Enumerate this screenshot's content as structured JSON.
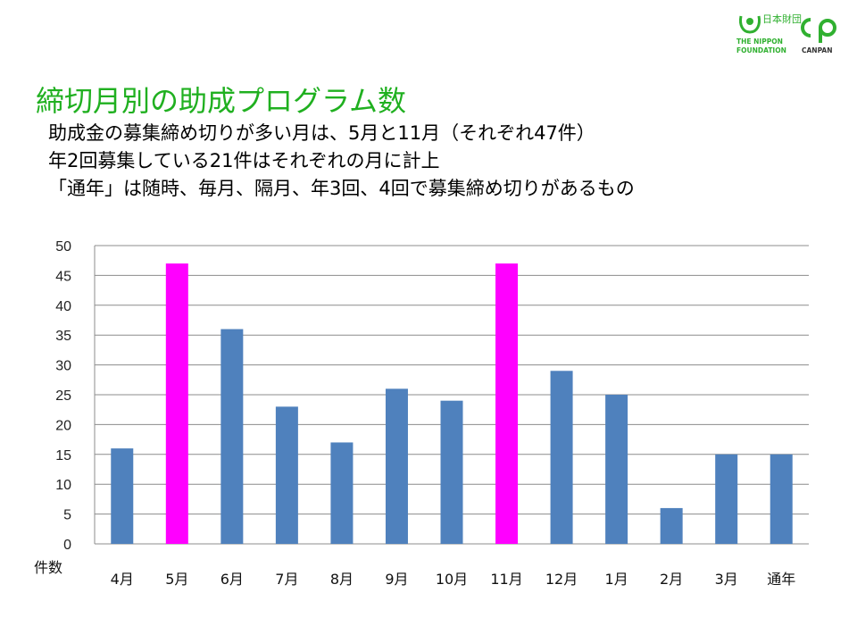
{
  "slide": {
    "title": "締切月別の助成プログラム数",
    "notes": [
      "助成金の募集締め切りが多い月は、5月と11月（それぞれ47件）",
      "年2回募集している21件はそれぞれの月に計上",
      "「通年」は随時、毎月、隔月、年3回、4回で募集締め切りがあるもの"
    ]
  },
  "logos": {
    "nippon": {
      "kanji": "日本財団",
      "line1": "THE NIPPON",
      "line2": "FOUNDATION",
      "icon": "nippon-foundation-emblem"
    },
    "canpan": {
      "text": "CANPAN",
      "icon": "canpan-cp-mark"
    }
  },
  "chart_data": {
    "type": "bar",
    "categories": [
      "4月",
      "5月",
      "6月",
      "7月",
      "8月",
      "9月",
      "10月",
      "11月",
      "12月",
      "1月",
      "2月",
      "3月",
      "通年"
    ],
    "values": [
      16,
      47,
      36,
      23,
      17,
      26,
      24,
      47,
      29,
      25,
      6,
      15,
      15
    ],
    "highlighted": [
      "5月",
      "11月"
    ],
    "ylabel": "件数",
    "ylim": [
      0,
      50
    ],
    "yticks": [
      0,
      5,
      10,
      15,
      20,
      25,
      30,
      35,
      40,
      45,
      50
    ],
    "grid": true,
    "colors": {
      "bar": "#4f81bd",
      "highlight": "#ff00ff",
      "grid": "#8c8c8c",
      "title": "#20b020"
    }
  }
}
